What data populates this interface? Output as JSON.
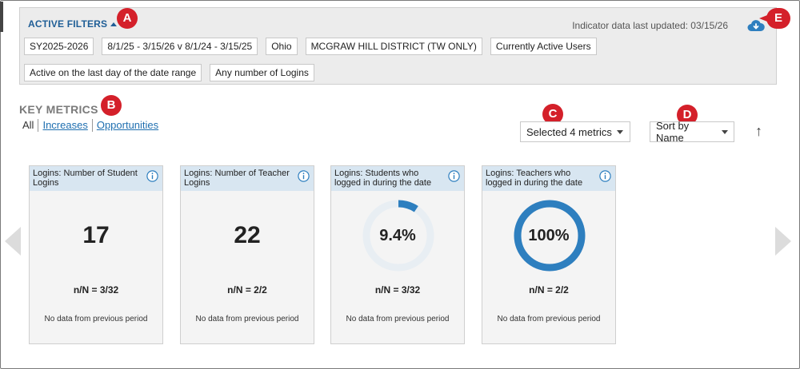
{
  "filters": {
    "title": "ACTIVE FILTERS",
    "updated": "Indicator data last updated: 03/15/26",
    "chips": [
      "SY2025-2026",
      "8/1/25 - 3/15/26 v 8/1/24 - 3/15/25",
      "Ohio",
      "MCGRAW HILL DISTRICT (TW ONLY)",
      "Currently Active Users",
      "Active on the last day of the date range",
      "Any number of Logins"
    ]
  },
  "markers": {
    "a": "A",
    "b": "B",
    "c": "C",
    "d": "D",
    "e": "E"
  },
  "key_metrics": {
    "title": "KEY METRICS",
    "tabs": [
      "All",
      "Increases",
      "Opportunities"
    ],
    "metrics_select": "Selected 4 metrics",
    "sort_select": "Sort by Name",
    "sort_direction_glyph": "↑"
  },
  "colors": {
    "accent": "#2e7fbf",
    "donut_track": "#e8eef3",
    "header": "#d8e6f1"
  },
  "cards": [
    {
      "title": "Logins: Number of Student Logins",
      "value": "17",
      "nn": "n/N = 3/32",
      "prev": "No data from previous period"
    },
    {
      "title": "Logins: Number of Teacher Logins",
      "value": "22",
      "nn": "n/N = 2/2",
      "prev": "No data from previous period"
    },
    {
      "title": "Logins: Students who logged in during the date",
      "value": "9.4%",
      "fraction": 0.094,
      "nn": "n/N = 3/32",
      "prev": "No data from previous period"
    },
    {
      "title": "Logins: Teachers who logged in during the date",
      "value": "100%",
      "fraction": 1.0,
      "nn": "n/N = 2/2",
      "prev": "No data from previous period"
    }
  ]
}
